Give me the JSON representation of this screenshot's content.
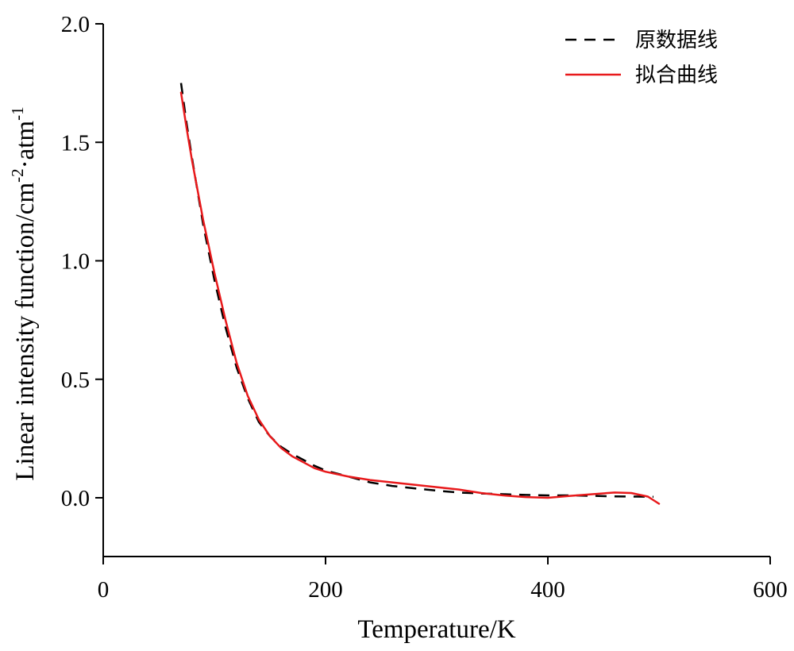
{
  "chart_data": {
    "type": "line",
    "title": "",
    "xlabel": "Temperature/K",
    "ylabel": {
      "base": "Linear intensity function/cm",
      "exp1": "-2",
      "mid": "·atm",
      "exp2": "-1"
    },
    "xlim": [
      0,
      600
    ],
    "ylim": [
      -0.25,
      2.0
    ],
    "xticks": [
      0,
      200,
      400,
      600
    ],
    "xtick_labels": [
      "0",
      "200",
      "400",
      "600"
    ],
    "yticks": [
      0.0,
      0.5,
      1.0,
      1.5,
      2.0
    ],
    "ytick_labels": [
      "0.0",
      "0.5",
      "1.0",
      "1.5",
      "2.0"
    ],
    "grid": false,
    "legend_position": "top-right",
    "series": [
      {
        "name": "原数据线",
        "style": "dashed",
        "color": "#000000",
        "x": [
          70,
          75,
          80,
          90,
          100,
          110,
          120,
          130,
          140,
          150,
          160,
          170,
          180,
          190,
          200,
          220,
          240,
          260,
          280,
          300,
          320,
          340,
          360,
          380,
          400,
          420,
          440,
          460,
          480,
          495
        ],
        "y": [
          1.75,
          1.58,
          1.43,
          1.15,
          0.92,
          0.72,
          0.55,
          0.42,
          0.32,
          0.26,
          0.215,
          0.185,
          0.16,
          0.135,
          0.115,
          0.09,
          0.065,
          0.05,
          0.04,
          0.03,
          0.022,
          0.018,
          0.015,
          0.012,
          0.01,
          0.01,
          0.008,
          0.006,
          0.005,
          0.004
        ]
      },
      {
        "name": "拟合曲线",
        "style": "solid",
        "color": "#e8191b",
        "x": [
          70,
          75,
          80,
          90,
          100,
          110,
          120,
          130,
          140,
          150,
          160,
          170,
          180,
          190,
          200,
          220,
          240,
          260,
          280,
          300,
          320,
          340,
          360,
          380,
          400,
          420,
          440,
          460,
          475,
          490,
          500
        ],
        "y": [
          1.71,
          1.56,
          1.42,
          1.17,
          0.95,
          0.75,
          0.57,
          0.43,
          0.33,
          0.26,
          0.21,
          0.175,
          0.15,
          0.125,
          0.11,
          0.09,
          0.075,
          0.065,
          0.055,
          0.045,
          0.035,
          0.02,
          0.01,
          0.003,
          0.0,
          0.008,
          0.015,
          0.022,
          0.02,
          0.005,
          -0.025
        ]
      }
    ]
  }
}
